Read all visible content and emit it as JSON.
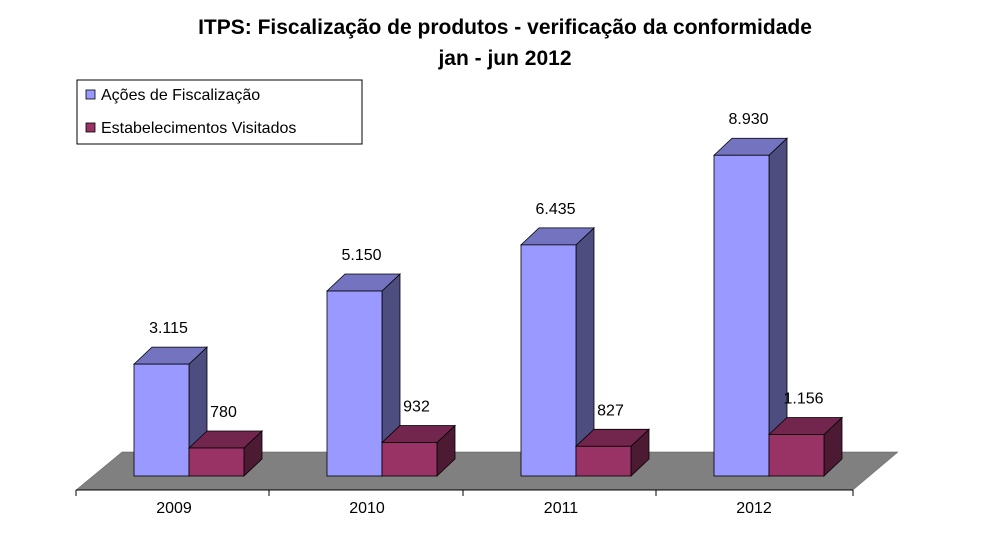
{
  "chart_data": {
    "type": "bar",
    "title": "ITPS: Fiscalização de produtos - verificação da conformidade",
    "subtitle": "jan - jun 2012",
    "categories": [
      "2009",
      "2010",
      "2011",
      "2012"
    ],
    "series": [
      {
        "name": "Ações de Fiscalização",
        "values": [
          3115,
          5150,
          6435,
          8930
        ],
        "labels": [
          "3.115",
          "5.150",
          "6.435",
          "8.930"
        ],
        "color": "#9999ff",
        "side_color": "#4d4d80",
        "top_color": "#7373bf"
      },
      {
        "name": "Estabelecimentos Visitados",
        "values": [
          780,
          932,
          827,
          1156
        ],
        "labels": [
          "780",
          "932",
          "827",
          "1.156"
        ],
        "color": "#993366",
        "side_color": "#4d1a33",
        "top_color": "#73264d"
      }
    ],
    "ylim": [
      0,
      9800
    ],
    "legend_position": "top-left",
    "floor_color": "#808080",
    "grid": false
  }
}
